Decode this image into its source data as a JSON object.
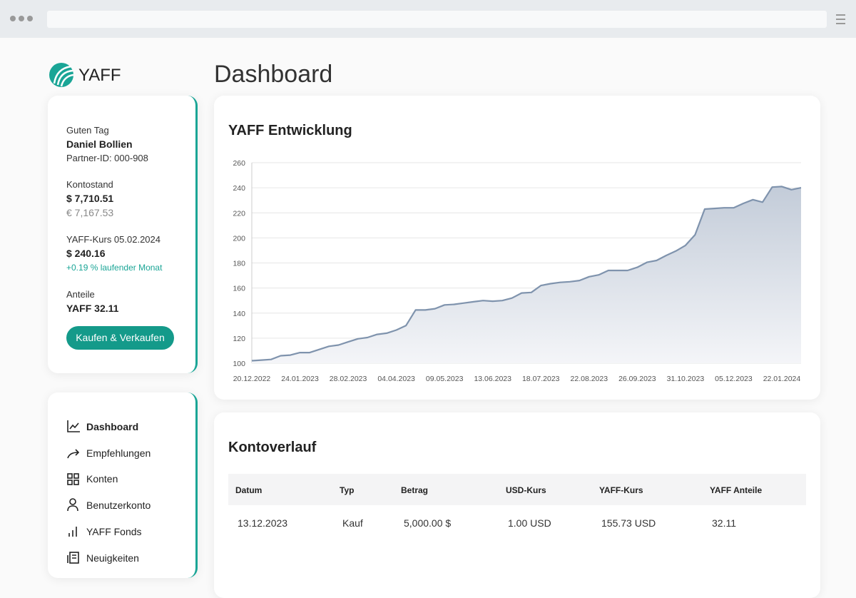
{
  "brand": "YAFF",
  "page_title": "Dashboard",
  "account": {
    "greeting": "Guten Tag",
    "name": "Daniel Bollien",
    "partner_id": "Partner-ID: 000-908",
    "balance_label": "Kontostand",
    "balance_usd": "$ 7,710.51",
    "balance_eur": "€ 7,167.53",
    "rate_label": "YAFF-Kurs 05.02.2024",
    "rate": "$ 240.16",
    "rate_change": "+0.19 % laufender Monat",
    "shares_label": "Anteile",
    "shares": "YAFF 32.11",
    "button": "Kaufen & Verkaufen"
  },
  "nav": [
    "Dashboard",
    "Empfehlungen",
    "Konten",
    "Benutzerkonto",
    "YAFF Fonds",
    "Neuigkeiten"
  ],
  "chart_data": {
    "type": "area",
    "title": "YAFF Entwicklung",
    "color": "#7f93ad",
    "grid": true,
    "categories": [
      "20.12.2022",
      null,
      null,
      null,
      null,
      "24.01.2023",
      null,
      null,
      null,
      null,
      "28.02.2023",
      null,
      null,
      null,
      null,
      "04.04.2023",
      null,
      null,
      null,
      null,
      "09.05.2023",
      null,
      null,
      null,
      null,
      "13.06.2023",
      null,
      null,
      null,
      null,
      "18.07.2023",
      null,
      null,
      null,
      null,
      "22.08.2023",
      null,
      null,
      null,
      null,
      "26.09.2023",
      null,
      null,
      null,
      null,
      "31.10.2023",
      null,
      null,
      null,
      null,
      "05.12.2023",
      null,
      null,
      null,
      null,
      "22.01.2024",
      null,
      null
    ],
    "values": [
      102,
      102.5,
      103,
      106,
      106.5,
      108.5,
      108.5,
      111,
      113.5,
      114.5,
      117,
      119.5,
      120.5,
      123,
      124,
      126.5,
      130,
      142.5,
      142.5,
      143.5,
      146.5,
      147,
      148,
      149,
      150,
      149.5,
      150,
      152,
      156,
      156.5,
      162,
      163.5,
      164.5,
      165,
      166,
      169,
      170.5,
      174,
      174,
      174,
      176.5,
      180.5,
      182,
      186,
      189.5,
      194,
      202.5,
      223,
      223.5,
      224,
      224,
      227.5,
      230.5,
      228.5,
      240.5,
      241,
      238.5,
      240
    ],
    "ylim": [
      100,
      260
    ],
    "yticks": [
      100,
      120,
      140,
      160,
      180,
      200,
      220,
      240,
      260
    ]
  },
  "table": {
    "title": "Kontoverlauf",
    "header": [
      "Datum",
      "Typ",
      "Betrag",
      "USD-Kurs",
      "YAFF-Kurs",
      "YAFF Anteile"
    ],
    "rows": [
      [
        "13.12.2023",
        "Kauf",
        "5,000.00 $",
        "1.00 USD",
        "155.73 USD",
        "32.11"
      ]
    ]
  }
}
